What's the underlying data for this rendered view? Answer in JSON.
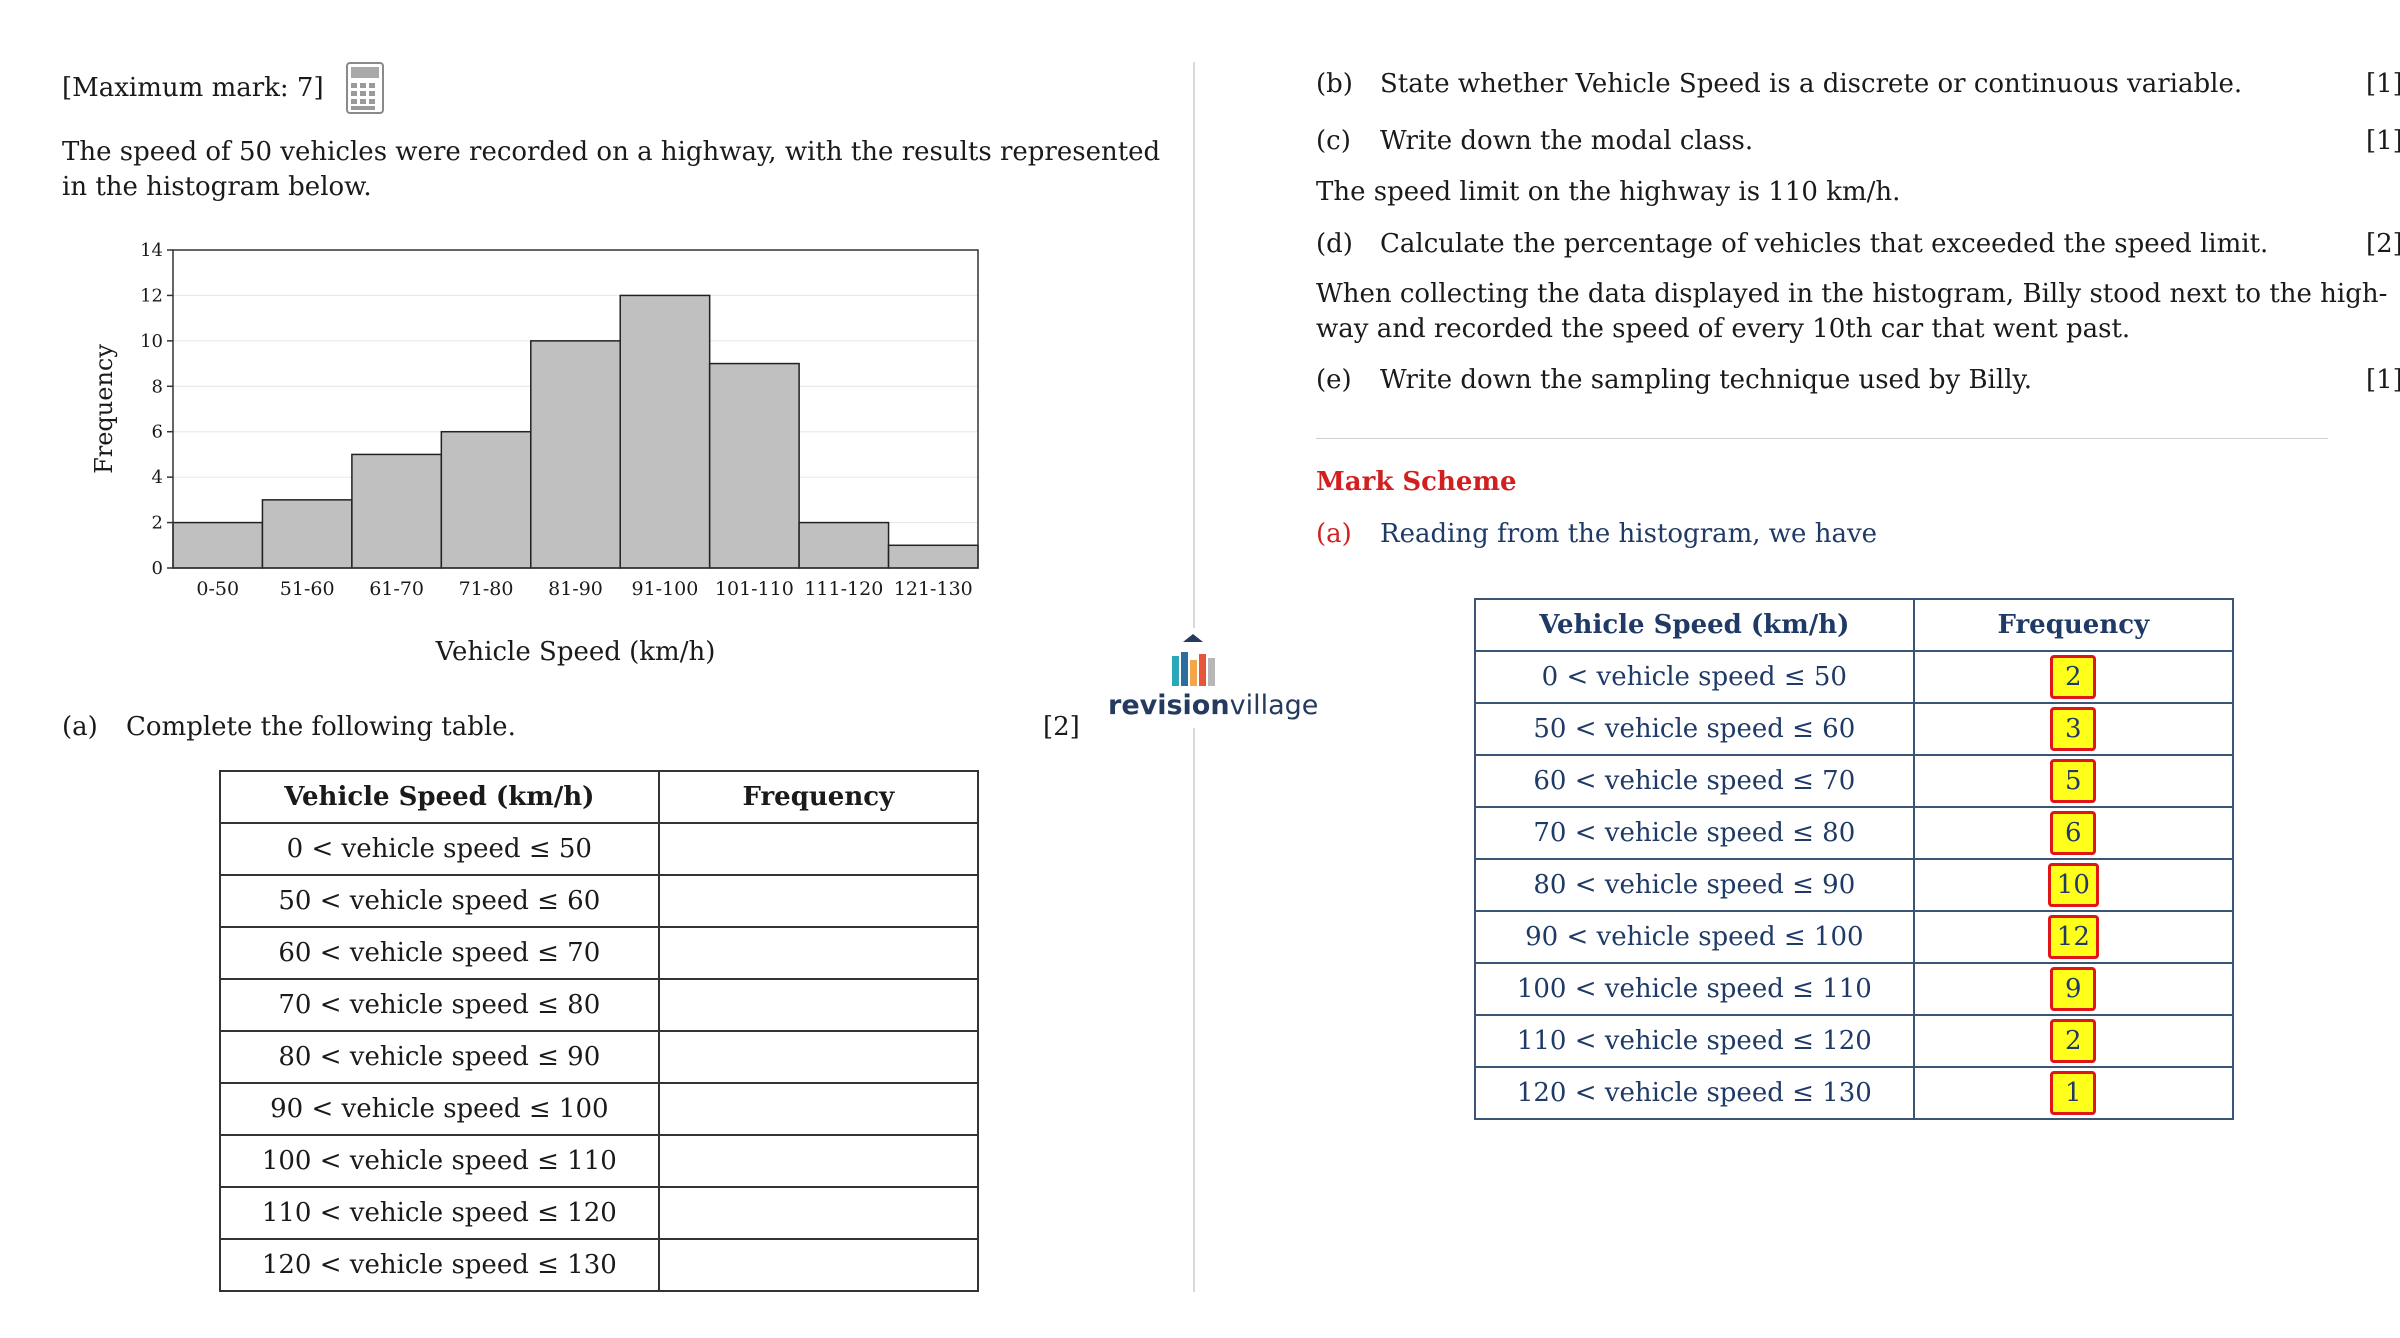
{
  "header": {
    "max_mark": "[Maximum mark: 7]"
  },
  "intro": {
    "line1": "The speed of 50 vehicles were recorded on a highway, with the results represented",
    "line2": "in the histogram below."
  },
  "chart_data": {
    "type": "bar",
    "categories": [
      "0-50",
      "51-60",
      "61-70",
      "71-80",
      "81-90",
      "91-100",
      "101-110",
      "111-120",
      "121-130"
    ],
    "values": [
      2,
      3,
      5,
      6,
      10,
      12,
      9,
      2,
      1
    ],
    "title": "",
    "xlabel": "Vehicle Speed (km/h)",
    "ylabel": "Frequency",
    "ylim": [
      0,
      14
    ],
    "yticks": [
      0,
      2,
      4,
      6,
      8,
      10,
      12,
      14
    ],
    "grid": true,
    "bar_color": "#c0c0c0"
  },
  "part_a": {
    "label": "(a)",
    "text": "Complete the following table.",
    "marks": "[2]"
  },
  "table_a": {
    "headers": [
      "Vehicle Speed (km/h)",
      "Frequency"
    ],
    "rows": [
      "0 < vehicle speed ≤ 50",
      "50 < vehicle speed ≤ 60",
      "60 < vehicle speed ≤ 70",
      "70 < vehicle speed ≤ 80",
      "80 < vehicle speed ≤ 90",
      "90 < vehicle speed ≤ 100",
      "100 < vehicle speed ≤ 110",
      "110 < vehicle speed ≤ 120",
      "120 < vehicle speed ≤ 130"
    ]
  },
  "logo": {
    "bold": "revision",
    "rest": "village"
  },
  "part_b": {
    "label": "(b)",
    "text": "State whether Vehicle Speed is a discrete or continuous variable.",
    "marks": "[1]"
  },
  "part_c": {
    "label": "(c)",
    "text": "Write down the modal class.",
    "marks": "[1]"
  },
  "speed_limit": "The speed limit on the highway is 110 km/h.",
  "part_d": {
    "label": "(d)",
    "text": "Calculate the percentage of vehicles that exceeded the speed limit.",
    "marks": "[2]"
  },
  "collecting": {
    "line1": "When collecting the data displayed in the histogram, Billy stood next to the high-",
    "line2": "way and recorded the speed of every 10th car that went past."
  },
  "part_e": {
    "label": "(e)",
    "text": "Write down the sampling technique used by Billy.",
    "marks": "[1]"
  },
  "mark_scheme": {
    "title": "Mark Scheme",
    "a_label": "(a)",
    "a_text": "Reading from the histogram, we have",
    "headers": [
      "Vehicle Speed (km/h)",
      "Frequency"
    ],
    "rows": [
      {
        "label": "0 < vehicle speed ≤ 50",
        "freq": "2"
      },
      {
        "label": "50 < vehicle speed ≤ 60",
        "freq": "3"
      },
      {
        "label": "60 < vehicle speed ≤ 70",
        "freq": "5"
      },
      {
        "label": "70 < vehicle speed ≤ 80",
        "freq": "6"
      },
      {
        "label": "80 < vehicle speed ≤ 90",
        "freq": "10"
      },
      {
        "label": "90 < vehicle speed ≤ 100",
        "freq": "12"
      },
      {
        "label": "100 < vehicle speed ≤ 110",
        "freq": "9"
      },
      {
        "label": "110 < vehicle speed ≤ 120",
        "freq": "2"
      },
      {
        "label": "120 < vehicle speed ≤ 130",
        "freq": "1"
      }
    ]
  }
}
